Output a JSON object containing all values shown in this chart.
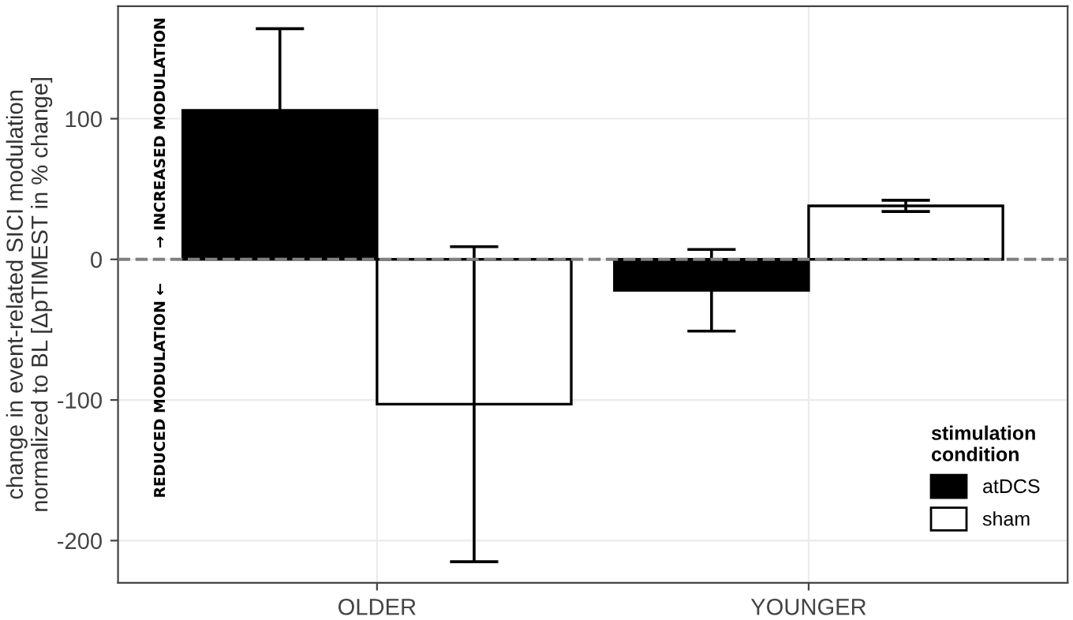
{
  "chart_data": {
    "type": "bar",
    "ylabel": "change in event-related SICI modulation\nnormalized to BL [ΔpTIMEST in % change]",
    "legend_title": "stimulation\ncondition",
    "categories": [
      "OLDER",
      "YOUNGER"
    ],
    "series": [
      {
        "name": "atDCS",
        "color": "#000000",
        "values": [
          106,
          -22
        ],
        "errors": [
          58,
          29
        ]
      },
      {
        "name": "sham",
        "color": "#ffffff",
        "values": [
          -103,
          38
        ],
        "errors": [
          112,
          4
        ]
      }
    ],
    "ylim": [
      -230,
      180
    ],
    "yticks": [
      -200,
      -100,
      0,
      100
    ],
    "grid": true,
    "legend": "bottom right",
    "ref_lines": [
      {
        "axis": "y",
        "value": 0,
        "color": "#808080",
        "line_style": "dashed"
      }
    ],
    "annotations": [
      "REDUCED MODULATION ←",
      "→ INCREASED MODULATION"
    ]
  }
}
